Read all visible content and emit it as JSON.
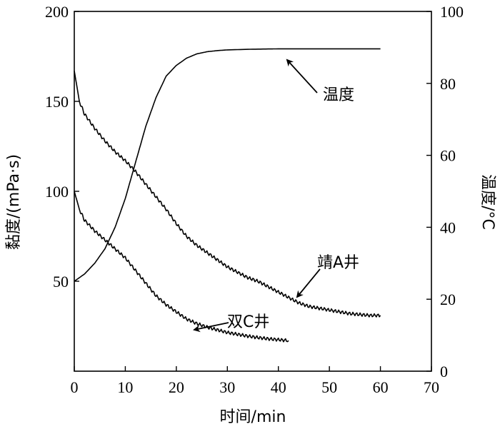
{
  "chart_data": {
    "type": "line",
    "title": "",
    "xlabel": "时间/min",
    "ylabel_left": "黏度/(mPa·s)",
    "ylabel_right": "温度/°C",
    "xlim": [
      0,
      70
    ],
    "ylim_left": [
      0,
      200
    ],
    "ylim_right": [
      0,
      100
    ],
    "xticks": [
      "0",
      "10",
      "20",
      "30",
      "40",
      "50",
      "60",
      "70"
    ],
    "yticks_left": [
      "200",
      "150",
      "100",
      "50"
    ],
    "yticks_right": [
      "0",
      "20",
      "40",
      "60",
      "80",
      "100"
    ],
    "grid": false,
    "series": [
      {
        "name": "温度",
        "axis": "right",
        "x": [
          0,
          2,
          4,
          6,
          8,
          10,
          12,
          14,
          16,
          18,
          20,
          22,
          24,
          26,
          28,
          30,
          35,
          40,
          50,
          60
        ],
        "y": [
          25,
          27,
          30,
          34,
          40,
          48,
          58,
          68,
          76,
          82,
          85,
          87,
          88.2,
          88.8,
          89.1,
          89.3,
          89.5,
          89.6,
          89.6,
          89.6
        ]
      },
      {
        "name": "靖A井",
        "axis": "left",
        "x": [
          0,
          1,
          2,
          4,
          6,
          8,
          10,
          12,
          14,
          16,
          18,
          20,
          22,
          24,
          26,
          28,
          30,
          32,
          34,
          36,
          38,
          40,
          42,
          44,
          46,
          48,
          50,
          52,
          54,
          56,
          58,
          60
        ],
        "y": [
          167,
          150,
          143,
          135,
          128,
          122,
          117,
          111,
          104,
          97,
          90,
          82,
          75,
          70,
          66,
          62,
          58,
          55,
          52,
          50,
          47,
          44,
          41,
          38,
          36,
          35,
          34,
          33,
          32,
          31.5,
          31,
          31
        ]
      },
      {
        "name": "双C井",
        "axis": "left",
        "x": [
          0,
          1,
          2,
          4,
          6,
          8,
          10,
          12,
          14,
          16,
          18,
          20,
          22,
          24,
          26,
          28,
          30,
          32,
          34,
          36,
          38,
          40,
          42
        ],
        "y": [
          100,
          90,
          84,
          78,
          73,
          68,
          63,
          56,
          49,
          42,
          37,
          33,
          29,
          26.5,
          24.5,
          23,
          21.5,
          20.5,
          19.5,
          18.7,
          18,
          17.5,
          17
        ]
      }
    ],
    "annotations": [
      "温度",
      "靖A井",
      "双C井"
    ]
  }
}
